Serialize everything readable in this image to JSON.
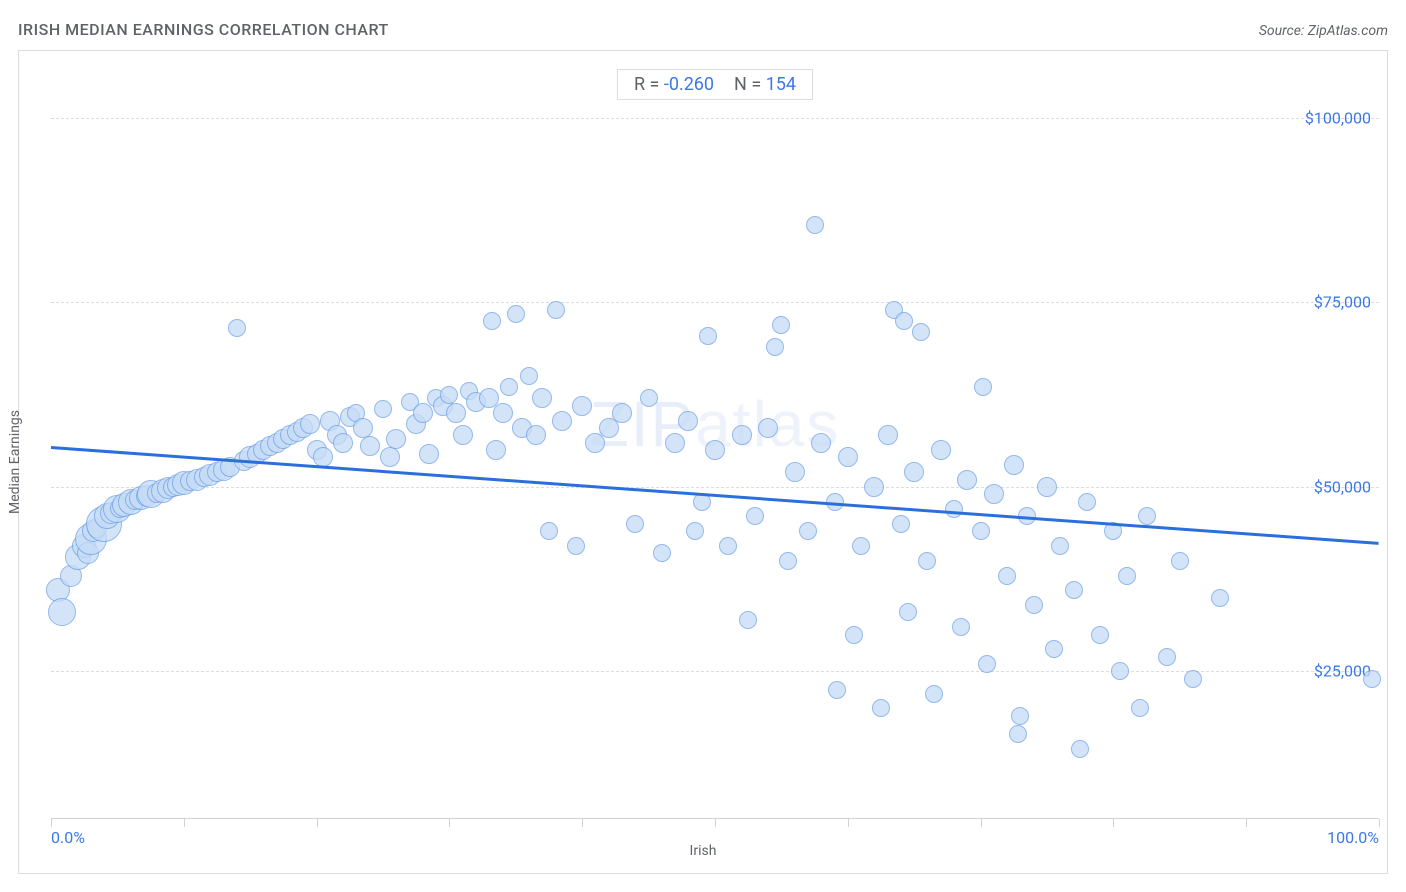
{
  "title": "IRISH MEDIAN EARNINGS CORRELATION CHART",
  "source": "Source: ZipAtlas.com",
  "watermark": "ZIPatlas",
  "stats": {
    "r_label": "R =",
    "r_value": "-0.260",
    "n_label": "N =",
    "n_value": "154"
  },
  "chart": {
    "type": "scatter",
    "xlabel": "Irish",
    "ylabel": "Median Earnings",
    "xlim": [
      0,
      100
    ],
    "ylim": [
      5000,
      108000
    ],
    "xlim_labels": {
      "min": "0.0%",
      "max": "100.0%"
    },
    "xtick_positions": [
      0,
      10,
      20,
      30,
      40,
      50,
      60,
      70,
      80,
      90,
      100
    ],
    "yticks": [
      {
        "v": 25000,
        "label": "$25,000"
      },
      {
        "v": 50000,
        "label": "$50,000"
      },
      {
        "v": 75000,
        "label": "$75,000"
      },
      {
        "v": 100000,
        "label": "$100,000"
      }
    ],
    "background_color": "#ffffff",
    "grid_color": "#dadce0",
    "axis_color": "#cfd2d6",
    "tick_label_color": "#3b78e7",
    "label_color": "#5f6368",
    "point_fill": "#c6dcf6",
    "point_fill_opacity": 0.75,
    "point_stroke": "#6fa1e6",
    "regression": {
      "color": "#2a6fdb",
      "width": 3,
      "y_at_x0": 55500,
      "y_at_x100": 42500
    },
    "data": [
      {
        "x": 0.5,
        "y": 36000,
        "r": 12
      },
      {
        "x": 0.8,
        "y": 33000,
        "r": 14
      },
      {
        "x": 1.5,
        "y": 38000,
        "r": 11
      },
      {
        "x": 2.0,
        "y": 40500,
        "r": 13
      },
      {
        "x": 2.5,
        "y": 42000,
        "r": 12
      },
      {
        "x": 2.8,
        "y": 41000,
        "r": 11
      },
      {
        "x": 3.0,
        "y": 43000,
        "r": 16
      },
      {
        "x": 3.2,
        "y": 44000,
        "r": 11
      },
      {
        "x": 3.5,
        "y": 44500,
        "r": 10
      },
      {
        "x": 4.0,
        "y": 45000,
        "r": 18
      },
      {
        "x": 4.2,
        "y": 46000,
        "r": 13
      },
      {
        "x": 4.5,
        "y": 46500,
        "r": 11
      },
      {
        "x": 5.0,
        "y": 47000,
        "r": 14
      },
      {
        "x": 5.2,
        "y": 47200,
        "r": 10
      },
      {
        "x": 5.5,
        "y": 47500,
        "r": 12
      },
      {
        "x": 6.0,
        "y": 48000,
        "r": 13
      },
      {
        "x": 6.3,
        "y": 48200,
        "r": 10
      },
      {
        "x": 6.8,
        "y": 48500,
        "r": 12
      },
      {
        "x": 7.2,
        "y": 48800,
        "r": 11
      },
      {
        "x": 7.5,
        "y": 49000,
        "r": 14
      },
      {
        "x": 8.0,
        "y": 49200,
        "r": 10
      },
      {
        "x": 8.4,
        "y": 49500,
        "r": 12
      },
      {
        "x": 8.8,
        "y": 49800,
        "r": 11
      },
      {
        "x": 9.2,
        "y": 50000,
        "r": 10
      },
      {
        "x": 9.6,
        "y": 50200,
        "r": 11
      },
      {
        "x": 10.0,
        "y": 50500,
        "r": 12
      },
      {
        "x": 10.5,
        "y": 50800,
        "r": 10
      },
      {
        "x": 11.0,
        "y": 51000,
        "r": 11
      },
      {
        "x": 11.5,
        "y": 51300,
        "r": 10
      },
      {
        "x": 12.0,
        "y": 51600,
        "r": 11
      },
      {
        "x": 12.5,
        "y": 52000,
        "r": 10
      },
      {
        "x": 13.0,
        "y": 52300,
        "r": 11
      },
      {
        "x": 13.5,
        "y": 52700,
        "r": 10
      },
      {
        "x": 14.0,
        "y": 71500,
        "r": 9
      },
      {
        "x": 14.5,
        "y": 53500,
        "r": 10
      },
      {
        "x": 15.0,
        "y": 54000,
        "r": 11
      },
      {
        "x": 15.5,
        "y": 54500,
        "r": 10
      },
      {
        "x": 16.0,
        "y": 55000,
        "r": 10
      },
      {
        "x": 16.5,
        "y": 55500,
        "r": 10
      },
      {
        "x": 17.0,
        "y": 56000,
        "r": 10
      },
      {
        "x": 17.5,
        "y": 56500,
        "r": 10
      },
      {
        "x": 18.0,
        "y": 57000,
        "r": 10
      },
      {
        "x": 18.5,
        "y": 57500,
        "r": 10
      },
      {
        "x": 19.0,
        "y": 58000,
        "r": 10
      },
      {
        "x": 19.5,
        "y": 58500,
        "r": 10
      },
      {
        "x": 20.0,
        "y": 55000,
        "r": 10
      },
      {
        "x": 20.5,
        "y": 54000,
        "r": 10
      },
      {
        "x": 21.0,
        "y": 59000,
        "r": 10
      },
      {
        "x": 21.5,
        "y": 57000,
        "r": 10
      },
      {
        "x": 22.0,
        "y": 56000,
        "r": 10
      },
      {
        "x": 22.5,
        "y": 59500,
        "r": 10
      },
      {
        "x": 23.0,
        "y": 60000,
        "r": 9
      },
      {
        "x": 23.5,
        "y": 58000,
        "r": 10
      },
      {
        "x": 24.0,
        "y": 55500,
        "r": 10
      },
      {
        "x": 25.0,
        "y": 60500,
        "r": 9
      },
      {
        "x": 25.5,
        "y": 54000,
        "r": 10
      },
      {
        "x": 26.0,
        "y": 56500,
        "r": 10
      },
      {
        "x": 27.0,
        "y": 61500,
        "r": 9
      },
      {
        "x": 27.5,
        "y": 58500,
        "r": 10
      },
      {
        "x": 28.0,
        "y": 60000,
        "r": 10
      },
      {
        "x": 28.5,
        "y": 54500,
        "r": 10
      },
      {
        "x": 29.0,
        "y": 62000,
        "r": 9
      },
      {
        "x": 29.5,
        "y": 61000,
        "r": 10
      },
      {
        "x": 30.0,
        "y": 62500,
        "r": 9
      },
      {
        "x": 30.5,
        "y": 60000,
        "r": 10
      },
      {
        "x": 31.0,
        "y": 57000,
        "r": 10
      },
      {
        "x": 31.5,
        "y": 63000,
        "r": 9
      },
      {
        "x": 32.0,
        "y": 61500,
        "r": 10
      },
      {
        "x": 33.0,
        "y": 62000,
        "r": 10
      },
      {
        "x": 33.2,
        "y": 72500,
        "r": 9
      },
      {
        "x": 33.5,
        "y": 55000,
        "r": 10
      },
      {
        "x": 34.0,
        "y": 60000,
        "r": 10
      },
      {
        "x": 34.5,
        "y": 63500,
        "r": 9
      },
      {
        "x": 35.0,
        "y": 73500,
        "r": 9
      },
      {
        "x": 35.5,
        "y": 58000,
        "r": 10
      },
      {
        "x": 36.0,
        "y": 65000,
        "r": 9
      },
      {
        "x": 36.5,
        "y": 57000,
        "r": 10
      },
      {
        "x": 37.0,
        "y": 62000,
        "r": 10
      },
      {
        "x": 37.5,
        "y": 44000,
        "r": 9
      },
      {
        "x": 38.0,
        "y": 74000,
        "r": 9
      },
      {
        "x": 38.5,
        "y": 59000,
        "r": 10
      },
      {
        "x": 39.5,
        "y": 42000,
        "r": 9
      },
      {
        "x": 40.0,
        "y": 61000,
        "r": 10
      },
      {
        "x": 41.0,
        "y": 56000,
        "r": 10
      },
      {
        "x": 42.0,
        "y": 58000,
        "r": 10
      },
      {
        "x": 43.0,
        "y": 60000,
        "r": 10
      },
      {
        "x": 44.0,
        "y": 45000,
        "r": 9
      },
      {
        "x": 45.0,
        "y": 62000,
        "r": 9
      },
      {
        "x": 46.0,
        "y": 41000,
        "r": 9
      },
      {
        "x": 47.0,
        "y": 56000,
        "r": 10
      },
      {
        "x": 48.0,
        "y": 59000,
        "r": 10
      },
      {
        "x": 48.5,
        "y": 44000,
        "r": 9
      },
      {
        "x": 49.0,
        "y": 48000,
        "r": 9
      },
      {
        "x": 49.5,
        "y": 70500,
        "r": 9
      },
      {
        "x": 50.0,
        "y": 55000,
        "r": 10
      },
      {
        "x": 51.0,
        "y": 42000,
        "r": 9
      },
      {
        "x": 52.0,
        "y": 57000,
        "r": 10
      },
      {
        "x": 52.5,
        "y": 32000,
        "r": 9
      },
      {
        "x": 53.0,
        "y": 46000,
        "r": 9
      },
      {
        "x": 54.0,
        "y": 58000,
        "r": 10
      },
      {
        "x": 54.5,
        "y": 69000,
        "r": 9
      },
      {
        "x": 55.0,
        "y": 72000,
        "r": 9
      },
      {
        "x": 55.5,
        "y": 40000,
        "r": 9
      },
      {
        "x": 56.0,
        "y": 52000,
        "r": 10
      },
      {
        "x": 57.0,
        "y": 44000,
        "r": 9
      },
      {
        "x": 57.5,
        "y": 85500,
        "r": 9
      },
      {
        "x": 58.0,
        "y": 56000,
        "r": 10
      },
      {
        "x": 59.0,
        "y": 48000,
        "r": 9
      },
      {
        "x": 59.2,
        "y": 22500,
        "r": 9
      },
      {
        "x": 60.0,
        "y": 54000,
        "r": 10
      },
      {
        "x": 60.5,
        "y": 30000,
        "r": 9
      },
      {
        "x": 61.0,
        "y": 42000,
        "r": 9
      },
      {
        "x": 62.0,
        "y": 50000,
        "r": 10
      },
      {
        "x": 62.5,
        "y": 20000,
        "r": 9
      },
      {
        "x": 63.0,
        "y": 57000,
        "r": 10
      },
      {
        "x": 63.5,
        "y": 74000,
        "r": 9
      },
      {
        "x": 64.0,
        "y": 45000,
        "r": 9
      },
      {
        "x": 64.2,
        "y": 72500,
        "r": 9
      },
      {
        "x": 64.5,
        "y": 33000,
        "r": 9
      },
      {
        "x": 65.0,
        "y": 52000,
        "r": 10
      },
      {
        "x": 65.5,
        "y": 71000,
        "r": 9
      },
      {
        "x": 66.0,
        "y": 40000,
        "r": 9
      },
      {
        "x": 66.5,
        "y": 22000,
        "r": 9
      },
      {
        "x": 67.0,
        "y": 55000,
        "r": 10
      },
      {
        "x": 68.0,
        "y": 47000,
        "r": 9
      },
      {
        "x": 68.5,
        "y": 31000,
        "r": 9
      },
      {
        "x": 69.0,
        "y": 51000,
        "r": 10
      },
      {
        "x": 70.0,
        "y": 44000,
        "r": 9
      },
      {
        "x": 70.2,
        "y": 63500,
        "r": 9
      },
      {
        "x": 70.5,
        "y": 26000,
        "r": 9
      },
      {
        "x": 71.0,
        "y": 49000,
        "r": 10
      },
      {
        "x": 72.0,
        "y": 38000,
        "r": 9
      },
      {
        "x": 72.5,
        "y": 53000,
        "r": 10
      },
      {
        "x": 72.8,
        "y": 16500,
        "r": 9
      },
      {
        "x": 73.0,
        "y": 19000,
        "r": 9
      },
      {
        "x": 73.5,
        "y": 46000,
        "r": 9
      },
      {
        "x": 74.0,
        "y": 34000,
        "r": 9
      },
      {
        "x": 75.0,
        "y": 50000,
        "r": 10
      },
      {
        "x": 75.5,
        "y": 28000,
        "r": 9
      },
      {
        "x": 76.0,
        "y": 42000,
        "r": 9
      },
      {
        "x": 77.0,
        "y": 36000,
        "r": 9
      },
      {
        "x": 77.5,
        "y": 14500,
        "r": 9
      },
      {
        "x": 78.0,
        "y": 48000,
        "r": 9
      },
      {
        "x": 79.0,
        "y": 30000,
        "r": 9
      },
      {
        "x": 80.0,
        "y": 44000,
        "r": 9
      },
      {
        "x": 80.5,
        "y": 25000,
        "r": 9
      },
      {
        "x": 81.0,
        "y": 38000,
        "r": 9
      },
      {
        "x": 82.0,
        "y": 20000,
        "r": 9
      },
      {
        "x": 82.5,
        "y": 46000,
        "r": 9
      },
      {
        "x": 84.0,
        "y": 27000,
        "r": 9
      },
      {
        "x": 85.0,
        "y": 40000,
        "r": 9
      },
      {
        "x": 86.0,
        "y": 24000,
        "r": 9
      },
      {
        "x": 88.0,
        "y": 35000,
        "r": 9
      },
      {
        "x": 99.5,
        "y": 24000,
        "r": 9
      }
    ]
  }
}
